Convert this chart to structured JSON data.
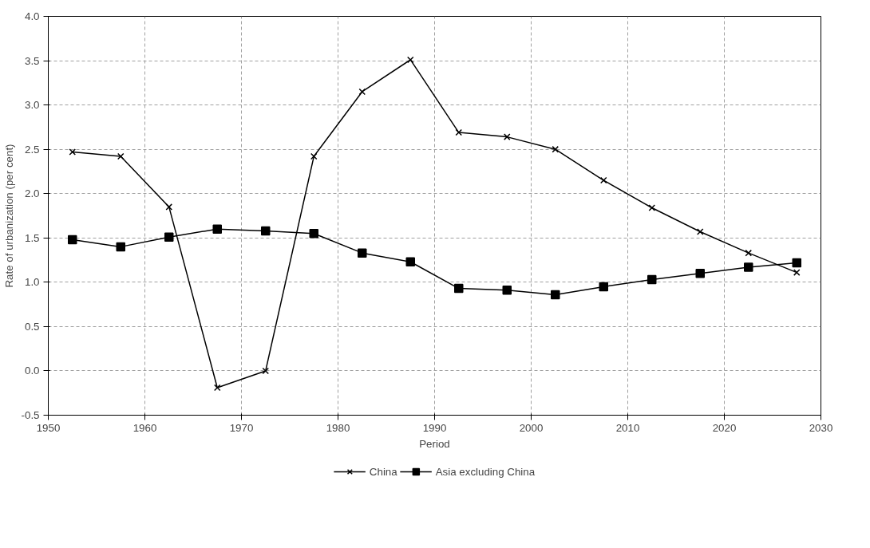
{
  "chart_data": {
    "type": "line",
    "xlabel": "Period",
    "ylabel": "Rate of urbanization (per cent)",
    "x": [
      1952.5,
      1957.5,
      1962.5,
      1967.5,
      1972.5,
      1977.5,
      1982.5,
      1987.5,
      1992.5,
      1997.5,
      2002.5,
      2007.5,
      2012.5,
      2017.5,
      2022.5,
      2027.5
    ],
    "series": [
      {
        "name": "China",
        "color": "#000000",
        "marker": "cross",
        "values": [
          2.47,
          2.42,
          1.85,
          -0.19,
          0.0,
          2.42,
          3.15,
          3.51,
          2.69,
          2.64,
          2.5,
          2.15,
          1.84,
          1.57,
          1.33,
          1.11
        ]
      },
      {
        "name": "Asia excluding China",
        "color": "#000000",
        "marker": "square",
        "values": [
          1.48,
          1.4,
          1.51,
          1.6,
          1.58,
          1.55,
          1.33,
          1.23,
          0.93,
          0.91,
          0.86,
          0.95,
          1.03,
          1.1,
          1.17,
          1.22
        ]
      }
    ],
    "xlim": [
      1950,
      2030
    ],
    "xticks": [
      1950,
      1960,
      1970,
      1980,
      1990,
      2000,
      2010,
      2020,
      2030
    ],
    "ylim": [
      -0.5,
      4.0
    ],
    "yticks": [
      {
        "value": -0.5,
        "label": "-0.5"
      },
      {
        "value": 0,
        "label": "0.0"
      },
      {
        "value": 0.5,
        "label": "0.5"
      },
      {
        "value": 1,
        "label": "1.0"
      },
      {
        "value": 1.5,
        "label": "1.5"
      },
      {
        "value": 2,
        "label": "2.0"
      },
      {
        "value": 2.5,
        "label": "2.5"
      },
      {
        "value": 3,
        "label": "3.0"
      },
      {
        "value": 3.5,
        "label": "3.5"
      },
      {
        "value": 4,
        "label": "4.0"
      }
    ],
    "grid": true,
    "legend": "bottom",
    "line_style": "solid"
  }
}
